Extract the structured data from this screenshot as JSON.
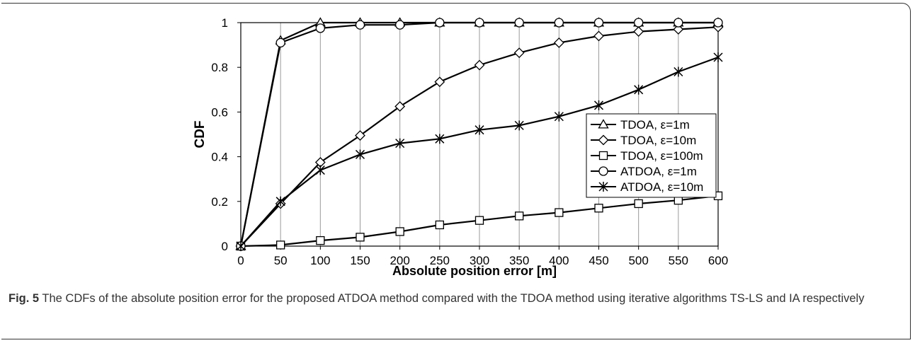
{
  "caption": {
    "label": "Fig. 5",
    "text": "The CDFs of the absolute position error for the proposed ATDOA method compared with the TDOA method using iterative algorithms TS-LS and IA respectively"
  },
  "chart_data": {
    "type": "line",
    "xlabel": "Absolute position error [m]",
    "ylabel": "CDF",
    "xlim": [
      0,
      600
    ],
    "ylim": [
      0,
      1
    ],
    "x_ticks": [
      0,
      50,
      100,
      150,
      200,
      250,
      300,
      350,
      400,
      450,
      500,
      550,
      600
    ],
    "y_ticks": [
      0,
      0.2,
      0.4,
      0.6,
      0.8,
      1
    ],
    "y_tick_labels": [
      "0",
      "0.2",
      "0.4",
      "0.6",
      "0.8",
      "1"
    ],
    "grid": "vertical",
    "legend_position": "right",
    "colors": {
      "line": "#000000",
      "grid": "#9a9a9a",
      "caption": "#333333"
    },
    "x": [
      0,
      50,
      100,
      150,
      200,
      250,
      300,
      350,
      400,
      450,
      500,
      550,
      600
    ],
    "series": [
      {
        "name": "TDOA, ε=1m",
        "marker": "triangle",
        "values": [
          0,
          0.92,
          1.0,
          1.0,
          1.0,
          1.0,
          1.0,
          1.0,
          1.0,
          1.0,
          1.0,
          1.0,
          1.0
        ]
      },
      {
        "name": "TDOA, ε=10m",
        "marker": "diamond",
        "values": [
          0,
          0.19,
          0.375,
          0.495,
          0.625,
          0.735,
          0.81,
          0.865,
          0.91,
          0.94,
          0.96,
          0.97,
          0.98
        ]
      },
      {
        "name": "TDOA, ε=100m",
        "marker": "square",
        "values": [
          0,
          0.005,
          0.025,
          0.04,
          0.065,
          0.095,
          0.115,
          0.135,
          0.15,
          0.17,
          0.19,
          0.205,
          0.225
        ]
      },
      {
        "name": "ATDOA, ε=1m",
        "marker": "circle",
        "values": [
          0,
          0.91,
          0.975,
          0.99,
          0.99,
          1.0,
          1.0,
          1.0,
          1.0,
          1.0,
          1.0,
          1.0,
          1.0
        ]
      },
      {
        "name": "ATDOA, ε=10m",
        "marker": "star",
        "values": [
          0,
          0.2,
          0.34,
          0.41,
          0.46,
          0.48,
          0.52,
          0.54,
          0.58,
          0.63,
          0.7,
          0.78,
          0.845
        ]
      }
    ]
  }
}
